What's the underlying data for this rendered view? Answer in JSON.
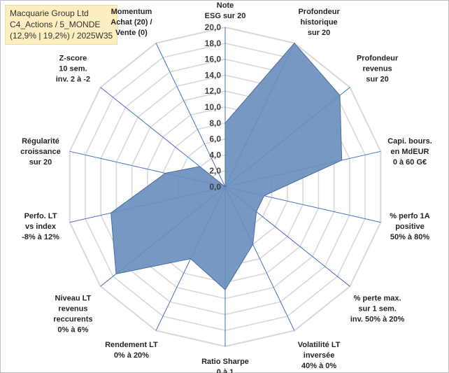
{
  "title_lines": [
    "Macquarie Group Ltd",
    "C4_Actions / 5_MONDE",
    "(12,9% | 19,2%) / 2025W35"
  ],
  "chart_data": {
    "type": "radar",
    "title": "Macquarie Group Ltd",
    "rmin": 0,
    "rmax": 20,
    "ticks": [
      "0,0",
      "2,0",
      "4,0",
      "6,0",
      "8,0",
      "10,0",
      "12,0",
      "14,0",
      "16,0",
      "18,0",
      "20,0"
    ],
    "grid": true,
    "fill_color": "#6a8fbd",
    "line_color": "#4a6f9e",
    "grid_color": "#d9d9d9",
    "axis_color": "#4472c4",
    "axes": [
      {
        "label": [
          "Note",
          "ESG sur 20"
        ],
        "value": 8.0
      },
      {
        "label": [
          "Profondeur",
          "historique",
          "sur 20"
        ],
        "value": 20.0
      },
      {
        "label": [
          "Profondeur",
          "revenus",
          "sur 20"
        ],
        "value": 18.4
      },
      {
        "label": [
          "Capi. bours.",
          "en MdEUR",
          "0 à 60 G€"
        ],
        "value": 15.0
      },
      {
        "label": [
          "% perfo 1A",
          "positive",
          "50% à 80%"
        ],
        "value": 5.0
      },
      {
        "label": [
          "% perte max.",
          "sur 1 sem.",
          "inv. 50% à 20%"
        ],
        "value": 5.0
      },
      {
        "label": [
          "Volatilité LT",
          "inversée",
          "40% à 0%"
        ],
        "value": 8.0
      },
      {
        "label": [
          "Ratio Sharpe",
          "0 à 1"
        ],
        "value": 12.9
      },
      {
        "label": [
          "Rendement LT",
          "0% à 20%"
        ],
        "value": 10.0
      },
      {
        "label": [
          "Niveau LT",
          "revenus",
          "reccurents",
          "0% à 6%"
        ],
        "value": 17.5
      },
      {
        "label": [
          "Perfo. LT",
          "vs index",
          "-8% à 12%"
        ],
        "value": 14.7
      },
      {
        "label": [
          "Régularité",
          "croissance",
          "sur 20"
        ],
        "value": 7.7
      },
      {
        "label": [
          "Z-score",
          "10 sem.",
          "inv. 2 à -2"
        ],
        "value": 4.1
      },
      {
        "label": [
          "Momentum",
          "Achat (20) /",
          "Vente (0)"
        ],
        "value": 0.0
      }
    ]
  }
}
